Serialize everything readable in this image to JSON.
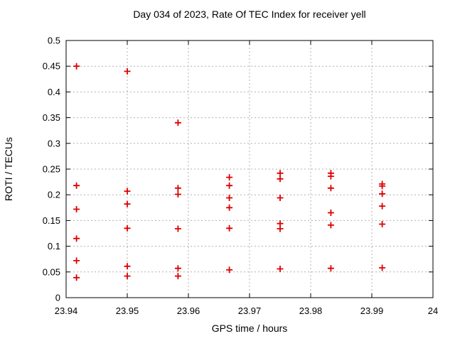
{
  "title": "Day 034 of 2023, Rate Of TEC Index for receiver yell",
  "colors": {
    "marker": "#dd0000",
    "grid": "#b0b0b0",
    "axis": "#000000",
    "background": "#ffffff",
    "text": "#000000"
  },
  "chart_data": {
    "type": "scatter",
    "title": "Day 034 of 2023, Rate Of TEC Index for receiver yell",
    "xlabel": "GPS time / hours",
    "ylabel": "ROTI / TECUs",
    "xlim": [
      23.94,
      24
    ],
    "ylim": [
      0,
      0.5
    ],
    "grid": true,
    "legend_position": "none",
    "marker_shape": "plus",
    "xticks": {
      "values": [
        23.94,
        23.95,
        23.96,
        23.97,
        23.98,
        23.99,
        24
      ],
      "labels": [
        "23.94",
        "23.95",
        "23.96",
        "23.97",
        "23.98",
        "23.99",
        "24"
      ]
    },
    "yticks": {
      "values": [
        0,
        0.05,
        0.1,
        0.15,
        0.2,
        0.25,
        0.3,
        0.35,
        0.4,
        0.45,
        0.5
      ],
      "labels": [
        "0",
        "0.05",
        "0.1",
        "0.15",
        "0.2",
        "0.25",
        "0.3",
        "0.35",
        "0.4",
        "0.45",
        "0.5"
      ]
    },
    "series": [
      {
        "name": "ROTI",
        "points": [
          [
            23.9417,
            0.45
          ],
          [
            23.9417,
            0.218
          ],
          [
            23.9417,
            0.172
          ],
          [
            23.9417,
            0.115
          ],
          [
            23.9417,
            0.072
          ],
          [
            23.9417,
            0.039
          ],
          [
            23.95,
            0.44
          ],
          [
            23.95,
            0.207
          ],
          [
            23.95,
            0.182
          ],
          [
            23.95,
            0.135
          ],
          [
            23.95,
            0.061
          ],
          [
            23.95,
            0.042
          ],
          [
            23.9583,
            0.34
          ],
          [
            23.9583,
            0.213
          ],
          [
            23.9583,
            0.201
          ],
          [
            23.9583,
            0.134
          ],
          [
            23.9583,
            0.057
          ],
          [
            23.9583,
            0.042
          ],
          [
            23.9667,
            0.234
          ],
          [
            23.9667,
            0.218
          ],
          [
            23.9667,
            0.194
          ],
          [
            23.9667,
            0.175
          ],
          [
            23.9667,
            0.135
          ],
          [
            23.9667,
            0.054
          ],
          [
            23.975,
            0.242
          ],
          [
            23.975,
            0.231
          ],
          [
            23.975,
            0.194
          ],
          [
            23.975,
            0.144
          ],
          [
            23.975,
            0.134
          ],
          [
            23.975,
            0.056
          ],
          [
            23.9833,
            0.242
          ],
          [
            23.9833,
            0.236
          ],
          [
            23.9833,
            0.213
          ],
          [
            23.9833,
            0.165
          ],
          [
            23.9833,
            0.141
          ],
          [
            23.9833,
            0.057
          ],
          [
            23.9917,
            0.221
          ],
          [
            23.9917,
            0.217
          ],
          [
            23.9917,
            0.202
          ],
          [
            23.9917,
            0.178
          ],
          [
            23.9917,
            0.143
          ],
          [
            23.9917,
            0.058
          ]
        ]
      }
    ]
  }
}
